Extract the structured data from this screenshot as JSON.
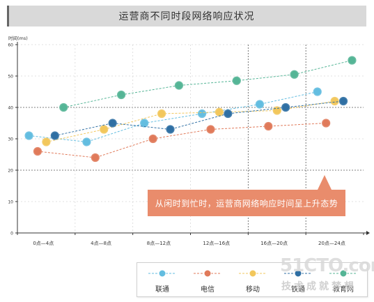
{
  "title": "运营商不同时段网络响应状况",
  "callout": "从闲时到忙时，运营商网络响应时间呈上升态势",
  "watermark": {
    "top": "51CTO.com",
    "bottom": "技术成就梦想"
  },
  "colors": {
    "联通": "#63bde0",
    "电信": "#e07a5a",
    "移动": "#f2c75c",
    "铁通": "#2f6fa3",
    "教育网": "#55b596",
    "callout": "#e98c6c"
  },
  "chart_data": {
    "type": "line",
    "ylabel": "时间(ms)",
    "ylim": [
      0,
      60
    ],
    "yticks": [
      "0",
      "10",
      "20",
      "30",
      "40",
      "50",
      "60"
    ],
    "categories": [
      "0点—4点",
      "4点—8点",
      "8点—12点",
      "12点—16点",
      "16点—20点",
      "20点—24点"
    ],
    "grid": true,
    "legend_position": "bottom-right",
    "series": [
      {
        "name": "联通",
        "color": "#63bde0",
        "x": [
          0.2,
          1.2,
          2.2,
          3.2,
          4.2,
          5.2
        ],
        "values": [
          31,
          29,
          35,
          38,
          41,
          45
        ]
      },
      {
        "name": "电信",
        "color": "#e07a5a",
        "x": [
          0.35,
          1.35,
          2.35,
          3.35,
          4.35,
          5.35
        ],
        "values": [
          26,
          24,
          30,
          33,
          34,
          35
        ]
      },
      {
        "name": "移动",
        "color": "#f2c75c",
        "x": [
          0.5,
          1.5,
          2.5,
          3.5,
          4.5,
          5.5
        ],
        "values": [
          29,
          33,
          38,
          38.5,
          39,
          42
        ]
      },
      {
        "name": "铁通",
        "color": "#2f6fa3",
        "x": [
          0.65,
          1.65,
          2.65,
          3.65,
          4.65,
          5.65
        ],
        "values": [
          31,
          35,
          33,
          38,
          40,
          42
        ]
      },
      {
        "name": "教育网",
        "color": "#55b596",
        "x": [
          0.8,
          1.8,
          2.8,
          3.8,
          4.8,
          5.8
        ],
        "values": [
          40,
          44,
          47,
          48.5,
          50.5,
          55
        ]
      }
    ]
  }
}
